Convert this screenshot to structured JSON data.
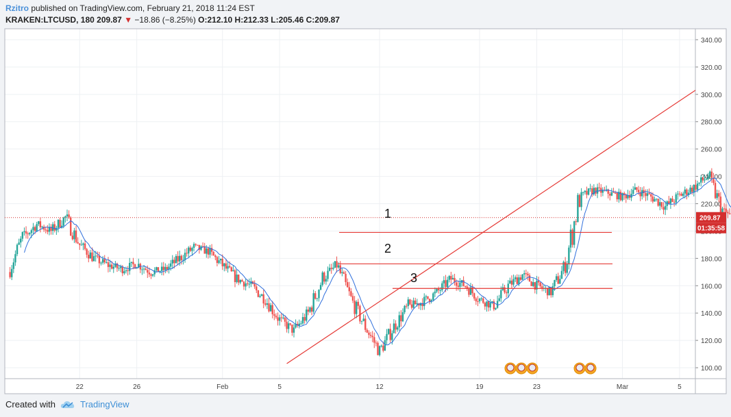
{
  "header": {
    "author": "Rzitro",
    "published": "published on TradingView.com, February 21, 2018 11:24 EST",
    "symbol": "KRAKEN:LTCUSD, 180",
    "last": "209.87",
    "change": "−18.86 (−8.25%)",
    "ohlc": "O:212.10 H:212.33 L:205.46 C:209.87"
  },
  "footer": {
    "created_with": "Created with",
    "brand": "TradingView",
    "icon": "tradingview-cloud-icon"
  },
  "colors": {
    "up": "#26a69a",
    "down": "#ef5350",
    "ma": "#2f6fdc",
    "drawing": "#e53935",
    "badge": "#d32f2f"
  },
  "chart_data": {
    "type": "candlestick",
    "title": "",
    "y_axis": {
      "side": "right",
      "ylim": [
        92,
        348
      ],
      "ticks": [
        "100.00",
        "120.00",
        "140.00",
        "160.00",
        "180.00",
        "200.00",
        "220.00",
        "240.00",
        "260.00",
        "280.00",
        "300.00",
        "320.00",
        "340.00"
      ]
    },
    "x_axis": {
      "ticks": [
        "22",
        "26",
        "Feb",
        "5",
        "12",
        "19",
        "23",
        "Mar",
        "5"
      ]
    },
    "grid": true,
    "price_badge": {
      "value": "209.87",
      "countdown": "01:35:58"
    },
    "series": [
      {
        "kind": "candles_close",
        "approx_closes_daily": [
          170,
          195,
          205,
          200,
          210,
          190,
          180,
          175,
          172,
          176,
          170,
          172,
          180,
          188,
          185,
          175,
          165,
          160,
          150,
          135,
          127,
          140,
          165,
          175,
          150,
          130,
          112,
          130,
          145,
          148,
          155,
          165,
          160,
          150,
          145,
          160,
          168,
          160,
          155,
          175,
          225,
          230,
          228,
          225,
          230,
          225,
          218,
          226,
          232,
          240,
          215,
          208
        ]
      },
      {
        "kind": "moving_average"
      }
    ],
    "annotations": [
      {
        "type": "trendline",
        "points": [
          [
            "Feb 5",
            103
          ],
          [
            "Mar 5",
            303
          ]
        ]
      },
      {
        "type": "hline",
        "value": 199,
        "label": "1"
      },
      {
        "type": "hline",
        "value": 176,
        "label": "2"
      },
      {
        "type": "hline",
        "value": 158,
        "label": "3"
      }
    ]
  }
}
